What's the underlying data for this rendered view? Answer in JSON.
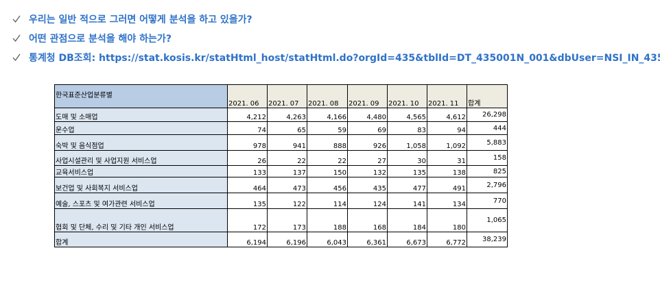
{
  "bullets": [
    "우리는 일반 적으로 그러면 어떻게 분석을 하고 있을가?",
    "어떤 관점으로 분석을 해야 하는가?",
    "통계청 DB조회: https://stat.kosis.kr/statHtml_host/statHtml.do?orgId=435&tblId=DT_435001N_001&dbUser=NSI_IN_435"
  ],
  "table": {
    "header": [
      "한국표준산업분류별",
      "2021. 06",
      "2021. 07",
      "2021. 08",
      "2021. 09",
      "2021. 10",
      "2021. 11",
      "합계"
    ],
    "rows": [
      [
        "도매 및 소매업",
        "4,212",
        "4,263",
        "4,166",
        "4,480",
        "4,565",
        "4,612",
        "26,298"
      ],
      [
        "운수업",
        "74",
        "65",
        "59",
        "69",
        "83",
        "94",
        "444"
      ],
      [
        "숙박 및 음식점업",
        "978",
        "941",
        "888",
        "926",
        "1,058",
        "1,092",
        "5,883"
      ],
      [
        "사업시설관리 및 사업지원 서비스업",
        "26",
        "22",
        "22",
        "27",
        "30",
        "31",
        "158"
      ],
      [
        "교육서비스업",
        "133",
        "137",
        "150",
        "132",
        "135",
        "138",
        "825"
      ],
      [
        "보건업 및 사회복지 서비스업",
        "464",
        "473",
        "456",
        "435",
        "477",
        "491",
        "2,796"
      ],
      [
        "예술, 스포츠 및 여가관련 서비스업",
        "135",
        "122",
        "114",
        "124",
        "141",
        "134",
        "770"
      ],
      [
        "협회 및 단체, 수리 및 기타 개인 서비스업",
        "172",
        "173",
        "188",
        "168",
        "184",
        "180",
        "1,065"
      ],
      [
        "합계",
        "6,194",
        "6,196",
        "6,043",
        "6,361",
        "6,673",
        "6,772",
        "38,239"
      ]
    ]
  }
}
